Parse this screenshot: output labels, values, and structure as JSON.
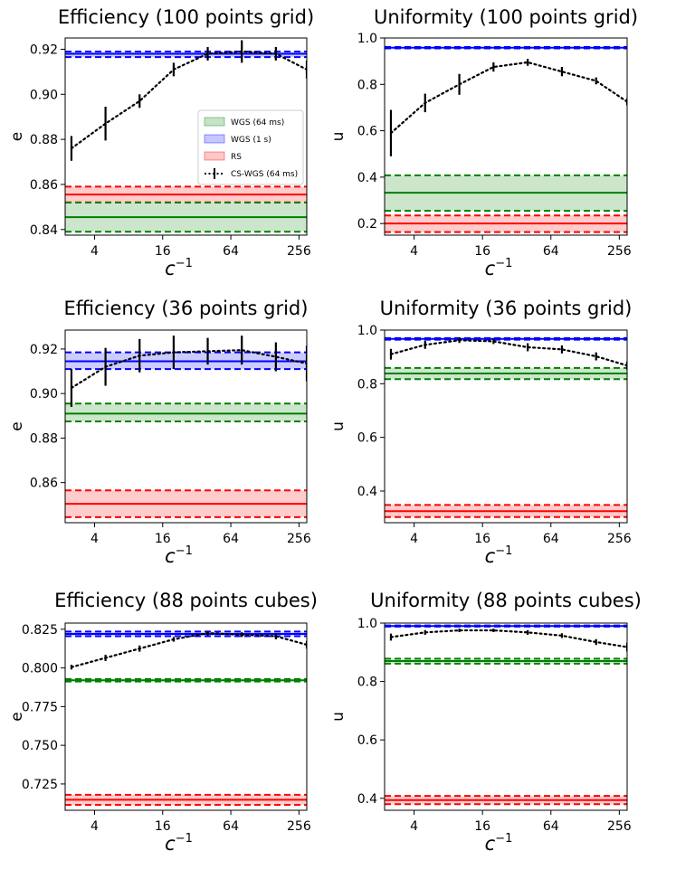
{
  "chart_data": [
    {
      "type": "line",
      "title": "Efficiency (100 points grid)",
      "xlabel": "c",
      "xlabel_superscript": "−1",
      "ylabel": "e",
      "xscale": "log2",
      "xlim": [
        2.2,
        300
      ],
      "ylim": [
        0.8375,
        0.925
      ],
      "xticks": [
        4,
        16,
        64,
        256
      ],
      "xticklabels": [
        "4",
        "16",
        "64",
        "256"
      ],
      "yticks": [
        0.84,
        0.86,
        0.88,
        0.9,
        0.92
      ],
      "yticklabels": [
        "0.84",
        "0.86",
        "0.88",
        "0.90",
        "0.92"
      ],
      "grid": false,
      "legend": {
        "placement": "center-right",
        "entries": [
          {
            "label": "WGS (64 ms)",
            "kind": "patch",
            "color": "#008000"
          },
          {
            "label": "WGS (1 s)",
            "kind": "patch",
            "color": "#0000ff"
          },
          {
            "label": "RS",
            "kind": "patch",
            "color": "#ff0000"
          },
          {
            "label": "CS-WGS (64 ms)",
            "kind": "errorline",
            "color": "#000000"
          }
        ]
      },
      "bands": [
        {
          "name": "WGS (1 s)",
          "color": "#0000ff",
          "mean": 0.918,
          "low": 0.9165,
          "high": 0.919
        },
        {
          "name": "RS",
          "color": "#ff0000",
          "mean": 0.8555,
          "low": 0.852,
          "high": 0.859
        },
        {
          "name": "WGS (64 ms)",
          "color": "#008000",
          "mean": 0.8455,
          "low": 0.839,
          "high": 0.852
        }
      ],
      "series": [
        {
          "name": "CS-WGS (64 ms)",
          "x": [
            2.5,
            5,
            10,
            20,
            40,
            80,
            160,
            300
          ],
          "y": [
            0.876,
            0.887,
            0.897,
            0.911,
            0.918,
            0.919,
            0.918,
            0.911
          ],
          "yerr": [
            0.0055,
            0.0075,
            0.003,
            0.003,
            0.003,
            0.005,
            0.003,
            0.004
          ]
        }
      ]
    },
    {
      "type": "line",
      "title": "Uniformity (100 points grid)",
      "xlabel": "c",
      "xlabel_superscript": "−1",
      "ylabel": "u",
      "xscale": "log2",
      "xlim": [
        2.2,
        300
      ],
      "ylim": [
        0.15,
        1.0
      ],
      "xticks": [
        4,
        16,
        64,
        256
      ],
      "xticklabels": [
        "4",
        "16",
        "64",
        "256"
      ],
      "yticks": [
        0.2,
        0.4,
        0.6,
        0.8,
        1.0
      ],
      "yticklabels": [
        "0.2",
        "0.4",
        "0.6",
        "0.8",
        "1.0"
      ],
      "grid": false,
      "bands": [
        {
          "name": "WGS (1 s)",
          "color": "#0000ff",
          "mean": 0.958,
          "low": 0.955,
          "high": 0.961
        },
        {
          "name": "WGS (64 ms)",
          "color": "#008000",
          "mean": 0.333,
          "low": 0.255,
          "high": 0.408
        },
        {
          "name": "RS",
          "color": "#ff0000",
          "mean": 0.2,
          "low": 0.163,
          "high": 0.235
        }
      ],
      "series": [
        {
          "name": "CS-WGS (64 ms)",
          "x": [
            2.5,
            5,
            10,
            20,
            40,
            80,
            160,
            300
          ],
          "y": [
            0.59,
            0.72,
            0.8,
            0.875,
            0.895,
            0.855,
            0.815,
            0.725
          ],
          "yerr": [
            0.1,
            0.04,
            0.045,
            0.02,
            0.015,
            0.02,
            0.015,
            0.015
          ]
        }
      ]
    },
    {
      "type": "line",
      "title": "Efficiency (36 points grid)",
      "xlabel": "c",
      "xlabel_superscript": "−1",
      "ylabel": "e",
      "xscale": "log2",
      "xlim": [
        2.2,
        300
      ],
      "ylim": [
        0.842,
        0.9285
      ],
      "xticks": [
        4,
        16,
        64,
        256
      ],
      "xticklabels": [
        "4",
        "16",
        "64",
        "256"
      ],
      "yticks": [
        0.86,
        0.88,
        0.9,
        0.92
      ],
      "yticklabels": [
        "0.86",
        "0.88",
        "0.90",
        "0.92"
      ],
      "grid": false,
      "bands": [
        {
          "name": "WGS (1 s)",
          "color": "#0000ff",
          "mean": 0.9145,
          "low": 0.911,
          "high": 0.9185
        },
        {
          "name": "WGS (64 ms)",
          "color": "#008000",
          "mean": 0.891,
          "low": 0.8875,
          "high": 0.8955
        },
        {
          "name": "RS",
          "color": "#ff0000",
          "mean": 0.8505,
          "low": 0.8445,
          "high": 0.8565
        }
      ],
      "series": [
        {
          "name": "CS-WGS (64 ms)",
          "x": [
            2.5,
            5,
            10,
            20,
            40,
            80,
            160,
            300
          ],
          "y": [
            0.9025,
            0.912,
            0.917,
            0.9185,
            0.919,
            0.9195,
            0.9165,
            0.9135
          ],
          "yerr": [
            0.0085,
            0.0085,
            0.0075,
            0.0075,
            0.006,
            0.0065,
            0.0065,
            0.008
          ]
        }
      ]
    },
    {
      "type": "line",
      "title": "Uniformity (36 points grid)",
      "xlabel": "c",
      "xlabel_superscript": "−1",
      "ylabel": "u",
      "xscale": "log2",
      "xlim": [
        2.2,
        300
      ],
      "ylim": [
        0.282,
        1.0
      ],
      "xticks": [
        4,
        16,
        64,
        256
      ],
      "xticklabels": [
        "4",
        "16",
        "64",
        "256"
      ],
      "yticks": [
        0.4,
        0.6,
        0.8,
        1.0
      ],
      "yticklabels": [
        "0.4",
        "0.6",
        "0.8",
        "1.0"
      ],
      "grid": false,
      "bands": [
        {
          "name": "WGS (1 s)",
          "color": "#0000ff",
          "mean": 0.967,
          "low": 0.964,
          "high": 0.97
        },
        {
          "name": "WGS (64 ms)",
          "color": "#008000",
          "mean": 0.838,
          "low": 0.817,
          "high": 0.859
        },
        {
          "name": "RS",
          "color": "#ff0000",
          "mean": 0.325,
          "low": 0.303,
          "high": 0.348
        }
      ],
      "series": [
        {
          "name": "CS-WGS (64 ms)",
          "x": [
            2.5,
            5,
            10,
            20,
            40,
            80,
            160,
            300
          ],
          "y": [
            0.91,
            0.945,
            0.962,
            0.958,
            0.936,
            0.928,
            0.902,
            0.868
          ],
          "yerr": [
            0.02,
            0.015,
            0.01,
            0.01,
            0.015,
            0.015,
            0.015,
            0.015
          ]
        }
      ]
    },
    {
      "type": "line",
      "title": "Efficiency (88 points cubes)",
      "xlabel": "c",
      "xlabel_superscript": "−1",
      "ylabel": "e",
      "xscale": "log2",
      "xlim": [
        2.2,
        300
      ],
      "ylim": [
        0.708,
        0.829
      ],
      "xticks": [
        4,
        16,
        64,
        256
      ],
      "xticklabels": [
        "4",
        "16",
        "64",
        "256"
      ],
      "yticks": [
        0.725,
        0.75,
        0.775,
        0.8,
        0.825
      ],
      "yticklabels": [
        "0.725",
        "0.750",
        "0.775",
        "0.800",
        "0.825"
      ],
      "grid": false,
      "bands": [
        {
          "name": "WGS (1 s)",
          "color": "#0000ff",
          "mean": 0.822,
          "low": 0.8205,
          "high": 0.8235
        },
        {
          "name": "WGS (64 ms)",
          "color": "#008000",
          "mean": 0.792,
          "low": 0.7912,
          "high": 0.7928
        },
        {
          "name": "RS",
          "color": "#ff0000",
          "mean": 0.7148,
          "low": 0.7115,
          "high": 0.718
        }
      ],
      "series": [
        {
          "name": "CS-WGS (64 ms)",
          "x": [
            2.5,
            5,
            10,
            20,
            40,
            80,
            160,
            300
          ],
          "y": [
            0.8005,
            0.8065,
            0.8125,
            0.8185,
            0.8225,
            0.8215,
            0.8205,
            0.815
          ],
          "yerr": [
            0.0015,
            0.002,
            0.002,
            0.0015,
            0.0015,
            0.0015,
            0.002,
            0.0025
          ]
        }
      ]
    },
    {
      "type": "line",
      "title": "Uniformity (88 points cubes)",
      "xlabel": "c",
      "xlabel_superscript": "−1",
      "ylabel": "u",
      "xscale": "log2",
      "xlim": [
        2.2,
        300
      ],
      "ylim": [
        0.359,
        1.0
      ],
      "xticks": [
        4,
        16,
        64,
        256
      ],
      "xticklabels": [
        "4",
        "16",
        "64",
        "256"
      ],
      "yticks": [
        0.4,
        0.6,
        0.8,
        1.0
      ],
      "yticklabels": [
        "0.4",
        "0.6",
        "0.8",
        "1.0"
      ],
      "grid": false,
      "bands": [
        {
          "name": "WGS (1 s)",
          "color": "#0000ff",
          "mean": 0.99,
          "low": 0.988,
          "high": 0.992
        },
        {
          "name": "WGS (64 ms)",
          "color": "#008000",
          "mean": 0.87,
          "low": 0.861,
          "high": 0.878
        },
        {
          "name": "RS",
          "color": "#ff0000",
          "mean": 0.394,
          "low": 0.38,
          "high": 0.408
        }
      ],
      "series": [
        {
          "name": "CS-WGS (64 ms)",
          "x": [
            2.5,
            5,
            10,
            20,
            40,
            80,
            160,
            300
          ],
          "y": [
            0.952,
            0.968,
            0.975,
            0.975,
            0.968,
            0.957,
            0.935,
            0.918
          ],
          "yerr": [
            0.012,
            0.008,
            0.006,
            0.006,
            0.008,
            0.008,
            0.01,
            0.015
          ]
        }
      ]
    }
  ]
}
